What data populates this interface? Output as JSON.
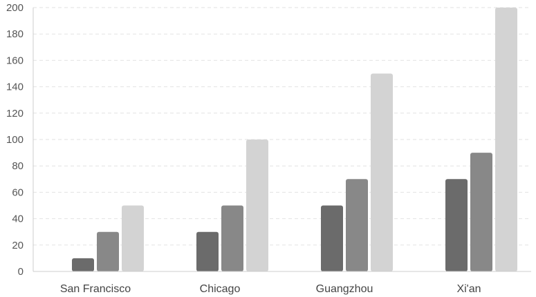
{
  "chart_data": {
    "type": "bar",
    "title": "",
    "xlabel": "",
    "ylabel": "",
    "categories": [
      "San Francisco",
      "Chicago",
      "Guangzhou",
      "Xi'an"
    ],
    "series": [
      {
        "values": [
          10,
          30,
          50,
          70
        ],
        "color": "#6b6b6b"
      },
      {
        "values": [
          30,
          50,
          70,
          90
        ],
        "color": "#888888"
      },
      {
        "values": [
          50,
          100,
          150,
          200
        ],
        "color": "#d3d3d3"
      }
    ],
    "ylim": [
      0,
      200
    ],
    "yticks": [
      "0",
      "20",
      "40",
      "60",
      "80",
      "100",
      "120",
      "140",
      "160",
      "180",
      "200"
    ],
    "grid": true,
    "legend": "none"
  }
}
